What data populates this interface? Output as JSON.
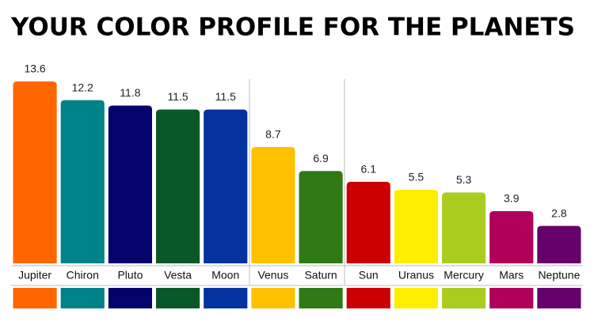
{
  "chart_data": {
    "type": "bar",
    "title": "YOUR COLOR PROFILE FOR THE PLANETS",
    "categories": [
      "Jupiter",
      "Chiron",
      "Pluto",
      "Vesta",
      "Moon",
      "Venus",
      "Saturn",
      "Sun",
      "Uranus",
      "Mercury",
      "Mars",
      "Neptune"
    ],
    "values": [
      13.6,
      12.2,
      11.8,
      11.5,
      11.5,
      8.7,
      6.9,
      6.1,
      5.5,
      5.3,
      3.9,
      2.8
    ],
    "colors": [
      "#ff6600",
      "#00828a",
      "#03036b",
      "#08582a",
      "#0433a0",
      "#ffc000",
      "#2f7a14",
      "#cc0000",
      "#ffee00",
      "#a9cc1f",
      "#b0005a",
      "#66006b"
    ]
  }
}
